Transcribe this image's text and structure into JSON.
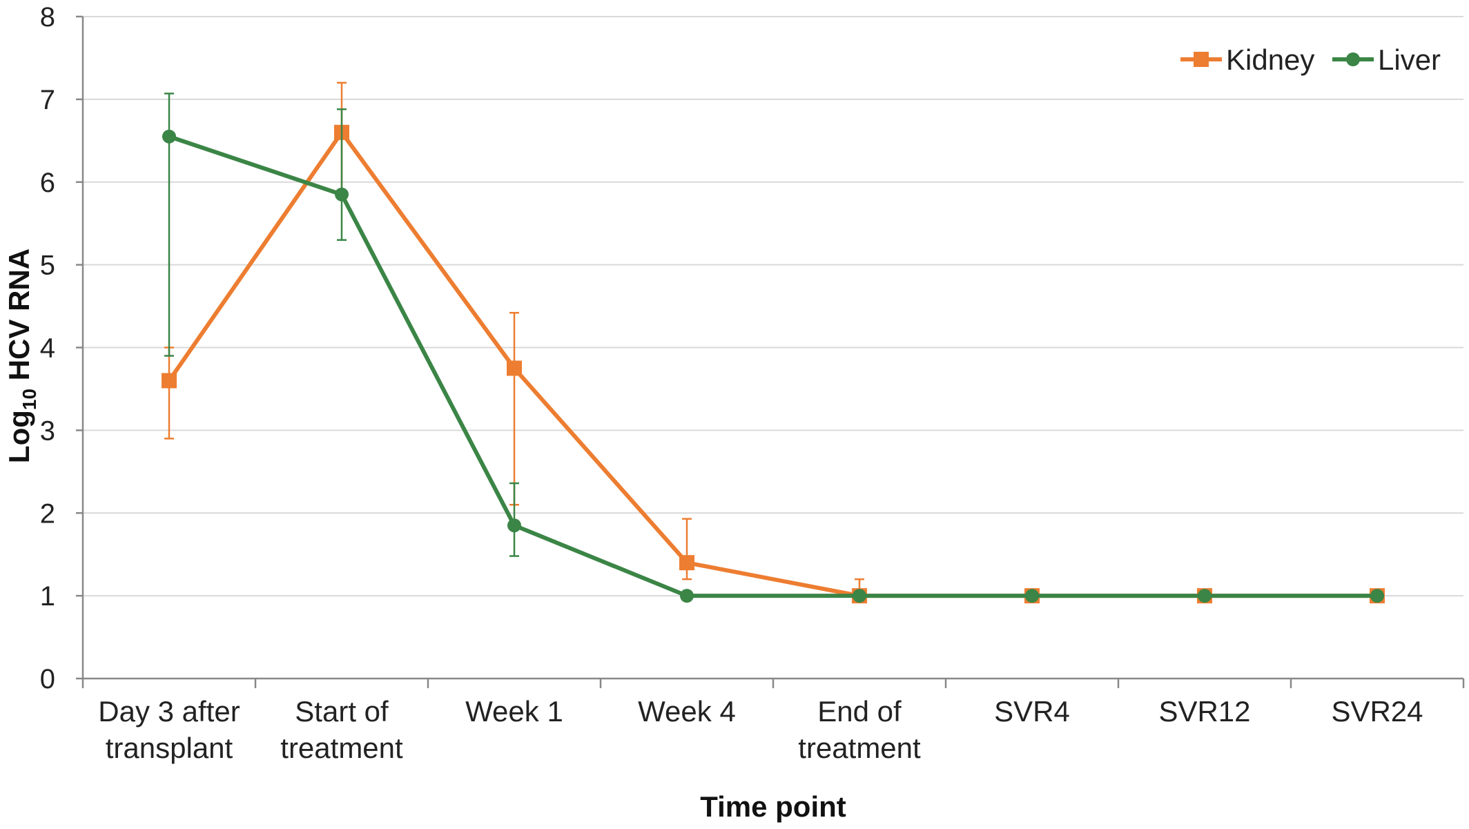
{
  "chart_data": {
    "type": "line",
    "categories": [
      "Day 3 after transplant",
      "Start of treatment",
      "Week 1",
      "Week 4",
      "End of treatment",
      "SVR4",
      "SVR12",
      "SVR24"
    ],
    "category_lines": [
      [
        "Day 3 after",
        "transplant"
      ],
      [
        "Start of",
        "treatment"
      ],
      [
        "Week 1"
      ],
      [
        "Week 4"
      ],
      [
        "End of",
        "treatment"
      ],
      [
        "SVR4"
      ],
      [
        "SVR12"
      ],
      [
        "SVR24"
      ]
    ],
    "series": [
      {
        "name": "Kidney",
        "color": "#ed7d31",
        "marker": "square",
        "values": [
          3.6,
          6.6,
          3.75,
          1.4,
          1.0,
          1.0,
          1.0,
          1.0
        ],
        "error_low": [
          2.9,
          5.85,
          2.1,
          1.2,
          1.0,
          1.0,
          1.0,
          1.0
        ],
        "error_high": [
          4.0,
          7.2,
          4.42,
          1.93,
          1.2,
          1.0,
          1.0,
          1.0
        ]
      },
      {
        "name": "Liver",
        "color": "#3b8546",
        "marker": "circle",
        "values": [
          6.55,
          5.85,
          1.85,
          1.0,
          1.0,
          1.0,
          1.0,
          1.0
        ],
        "error_low": [
          3.9,
          5.3,
          1.48,
          1.0,
          1.0,
          1.0,
          1.0,
          1.0
        ],
        "error_high": [
          7.07,
          6.88,
          2.36,
          1.0,
          1.0,
          1.0,
          1.0,
          1.0
        ]
      }
    ],
    "title": "",
    "xlabel": "Time point",
    "ylabel_main": "Log",
    "ylabel_sub": "10",
    "ylabel_rest": " HCV RNA",
    "ylim": [
      0,
      8
    ],
    "yticks": [
      "0",
      "1",
      "2",
      "3",
      "4",
      "5",
      "6",
      "7",
      "8"
    ],
    "grid": true,
    "legend_position": "top-right"
  }
}
